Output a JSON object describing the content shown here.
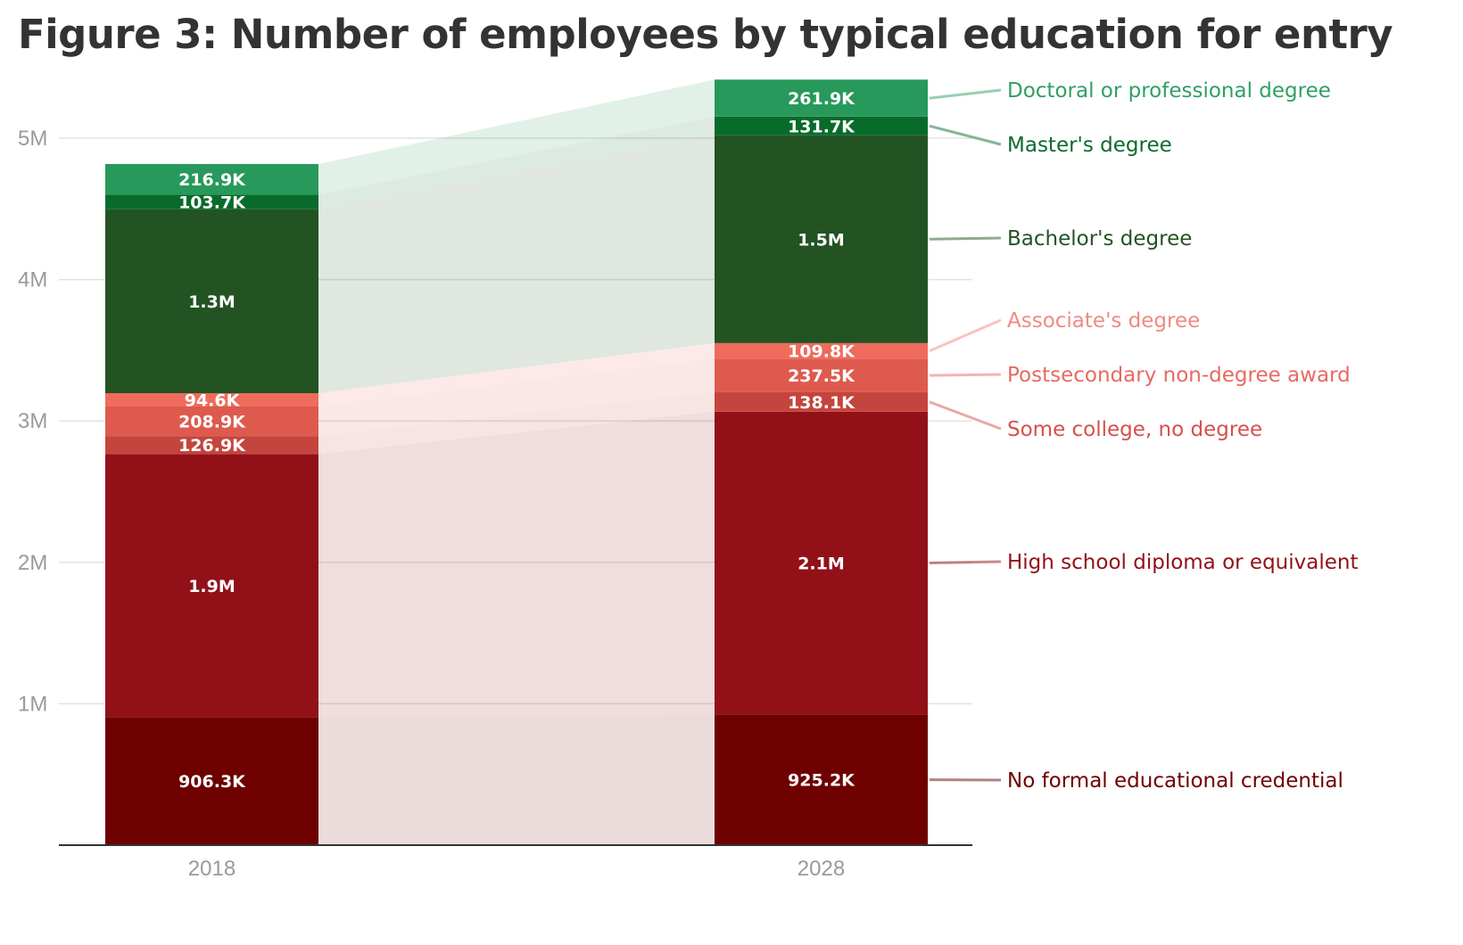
{
  "title": "Figure 3: Number of employees by typical education for entry",
  "chart_data": {
    "type": "bar",
    "stacked": true,
    "categories": [
      "2018",
      "2028"
    ],
    "ylim": [
      0,
      5400000
    ],
    "yticks": [
      {
        "value": 1000000,
        "label": "1M"
      },
      {
        "value": 2000000,
        "label": "2M"
      },
      {
        "value": 3000000,
        "label": "3M"
      },
      {
        "value": 4000000,
        "label": "4M"
      },
      {
        "value": 5000000,
        "label": "5M"
      }
    ],
    "grid": true,
    "legend_position": "right, labels aligned to segments",
    "series": [
      {
        "name": "No formal educational credential",
        "values": [
          906300,
          925200
        ],
        "labels": [
          "906.3K",
          "925.2K"
        ],
        "color": "#6e0000",
        "legend_color": "#6e0000"
      },
      {
        "name": "High school diploma or equivalent",
        "values": [
          1860000,
          2140000
        ],
        "labels": [
          "1.9M",
          "2.1M"
        ],
        "color": "#921118",
        "legend_color": "#921118"
      },
      {
        "name": "Some college, no degree",
        "values": [
          126900,
          138100
        ],
        "labels": [
          "126.9K",
          "138.1K"
        ],
        "color": "#c4453d",
        "legend_color": "#d7504a"
      },
      {
        "name": "Postsecondary non-degree award",
        "values": [
          208900,
          237500
        ],
        "labels": [
          "208.9K",
          "237.5K"
        ],
        "color": "#de5a4e",
        "legend_color": "#e86a5f"
      },
      {
        "name": "Associate's degree",
        "values": [
          94600,
          109800
        ],
        "labels": [
          "94.6K",
          "109.8K"
        ],
        "color": "#ef6b5c",
        "legend_color": "#f08a80"
      },
      {
        "name": "Bachelor's degree",
        "values": [
          1300000,
          1470000
        ],
        "labels": [
          "1.3M",
          "1.5M"
        ],
        "color": "#235323",
        "legend_color": "#235323"
      },
      {
        "name": "Master's degree",
        "values": [
          103700,
          131700
        ],
        "labels": [
          "103.7K",
          "131.7K"
        ],
        "color": "#086b2b",
        "legend_color": "#0c6b2e"
      },
      {
        "name": "Doctoral or professional degree",
        "values": [
          216900,
          261900
        ],
        "labels": [
          "216.9K",
          "261.9K"
        ],
        "color": "#27995a",
        "legend_color": "#2fa063"
      }
    ]
  }
}
